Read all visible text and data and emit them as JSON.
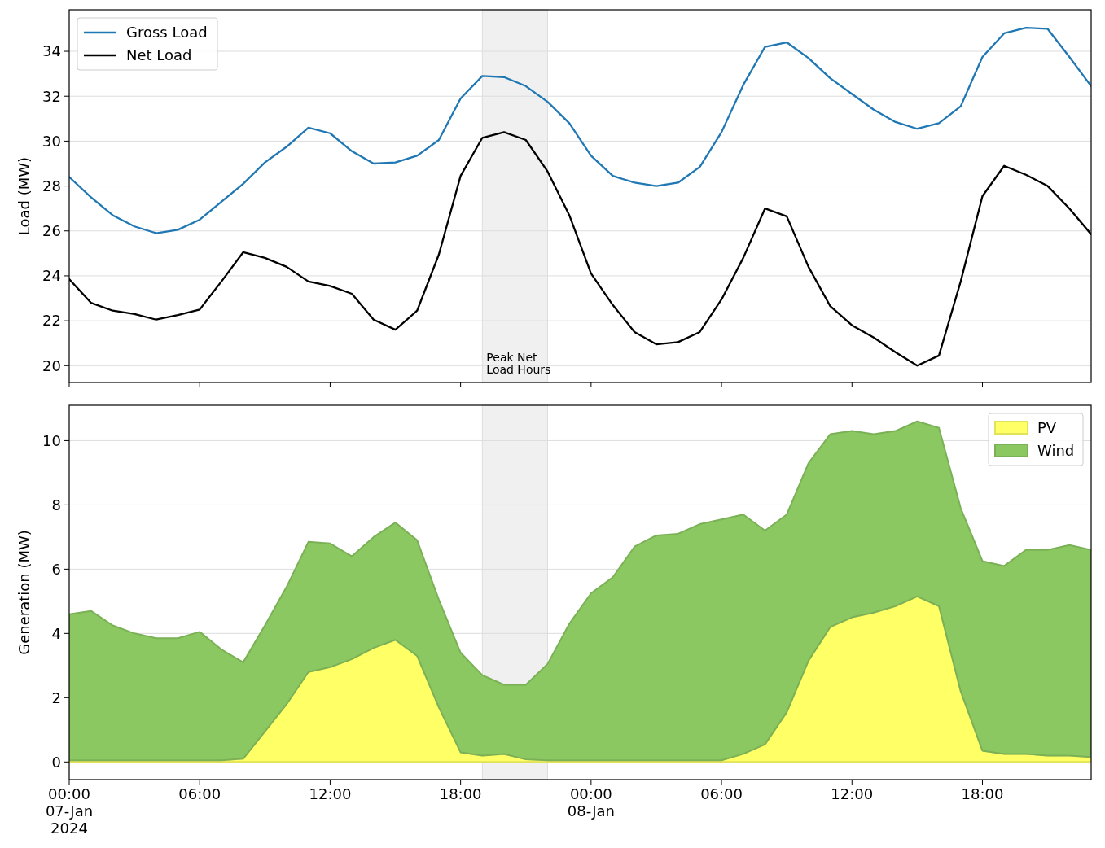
{
  "chart_data": [
    {
      "type": "line",
      "ylabel": "Load (MW)",
      "x": [
        "2024-01-07T00:00",
        "2024-01-07T01:00",
        "2024-01-07T02:00",
        "2024-01-07T03:00",
        "2024-01-07T04:00",
        "2024-01-07T05:00",
        "2024-01-07T06:00",
        "2024-01-07T07:00",
        "2024-01-07T08:00",
        "2024-01-07T09:00",
        "2024-01-07T10:00",
        "2024-01-07T11:00",
        "2024-01-07T12:00",
        "2024-01-07T13:00",
        "2024-01-07T14:00",
        "2024-01-07T15:00",
        "2024-01-07T16:00",
        "2024-01-07T17:00",
        "2024-01-07T18:00",
        "2024-01-07T19:00",
        "2024-01-07T20:00",
        "2024-01-07T21:00",
        "2024-01-07T22:00",
        "2024-01-07T23:00",
        "2024-01-08T00:00",
        "2024-01-08T01:00",
        "2024-01-08T02:00",
        "2024-01-08T03:00",
        "2024-01-08T04:00",
        "2024-01-08T05:00",
        "2024-01-08T06:00",
        "2024-01-08T07:00",
        "2024-01-08T08:00",
        "2024-01-08T09:00",
        "2024-01-08T10:00",
        "2024-01-08T11:00",
        "2024-01-08T12:00",
        "2024-01-08T13:00",
        "2024-01-08T14:00",
        "2024-01-08T15:00",
        "2024-01-08T16:00",
        "2024-01-08T17:00",
        "2024-01-08T18:00",
        "2024-01-08T19:00",
        "2024-01-08T20:00",
        "2024-01-08T21:00",
        "2024-01-08T22:00",
        "2024-01-08T23:00"
      ],
      "series": [
        {
          "name": "Gross Load",
          "color": "#1f77b4",
          "values": [
            28.4,
            27.5,
            26.7,
            26.2,
            25.9,
            26.05,
            26.5,
            27.3,
            28.1,
            29.05,
            29.75,
            30.6,
            30.35,
            29.55,
            29.0,
            29.05,
            29.35,
            30.05,
            31.9,
            32.9,
            32.85,
            32.45,
            31.75,
            30.8,
            29.35,
            28.45,
            28.15,
            28.0,
            28.15,
            28.85,
            30.4,
            32.5,
            34.2,
            34.4,
            33.7,
            32.8,
            32.1,
            31.4,
            30.85,
            30.55,
            30.8,
            31.55,
            33.75,
            34.8,
            35.05,
            35.0,
            33.75,
            32.45
          ]
        },
        {
          "name": "Net Load",
          "color": "#000000",
          "values": [
            23.85,
            22.8,
            22.45,
            22.3,
            22.05,
            22.25,
            22.5,
            23.75,
            25.05,
            24.8,
            24.4,
            23.75,
            23.55,
            23.2,
            22.05,
            21.6,
            22.45,
            24.95,
            28.45,
            30.15,
            30.4,
            30.05,
            28.65,
            26.7,
            24.1,
            22.7,
            21.5,
            20.95,
            21.05,
            21.5,
            22.95,
            24.8,
            27.0,
            26.65,
            24.4,
            22.65,
            21.8,
            21.25,
            20.6,
            20.0,
            20.45,
            23.75,
            27.55,
            28.9,
            28.5,
            28.0,
            27.0,
            25.85
          ]
        }
      ],
      "xlim": [
        "2024-01-07T00:00",
        "2024-01-08T23:00"
      ],
      "xticks": [
        {
          "value": "2024-01-07T00:00",
          "label": null
        },
        {
          "value": "2024-01-07T06:00",
          "label": null
        },
        {
          "value": "2024-01-07T12:00",
          "label": null
        },
        {
          "value": "2024-01-07T18:00",
          "label": null
        },
        {
          "value": "2024-01-08T00:00",
          "label": null
        },
        {
          "value": "2024-01-08T06:00",
          "label": null
        },
        {
          "value": "2024-01-08T12:00",
          "label": null
        },
        {
          "value": "2024-01-08T18:00",
          "label": null
        }
      ],
      "ylim": [
        19.25,
        35.85
      ],
      "yticks": [
        20,
        22,
        24,
        26,
        28,
        30,
        32,
        34
      ],
      "tick_labels": "y",
      "grid": "y",
      "legend": "top left",
      "line_style": "solid",
      "bands": [
        {
          "axis": "x",
          "from": "2024-01-07T19:00",
          "to": "2024-01-07T22:00",
          "label": "Peak Net\nLoad Hours",
          "color": "#f0f0f0"
        }
      ]
    },
    {
      "type": "area",
      "stacked": true,
      "ylabel": "Generation (MW)",
      "x": [
        "2024-01-07T00:00",
        "2024-01-07T01:00",
        "2024-01-07T02:00",
        "2024-01-07T03:00",
        "2024-01-07T04:00",
        "2024-01-07T05:00",
        "2024-01-07T06:00",
        "2024-01-07T07:00",
        "2024-01-07T08:00",
        "2024-01-07T09:00",
        "2024-01-07T10:00",
        "2024-01-07T11:00",
        "2024-01-07T12:00",
        "2024-01-07T13:00",
        "2024-01-07T14:00",
        "2024-01-07T15:00",
        "2024-01-07T16:00",
        "2024-01-07T17:00",
        "2024-01-07T18:00",
        "2024-01-07T19:00",
        "2024-01-07T20:00",
        "2024-01-07T21:00",
        "2024-01-07T22:00",
        "2024-01-07T23:00",
        "2024-01-08T00:00",
        "2024-01-08T01:00",
        "2024-01-08T02:00",
        "2024-01-08T03:00",
        "2024-01-08T04:00",
        "2024-01-08T05:00",
        "2024-01-08T06:00",
        "2024-01-08T07:00",
        "2024-01-08T08:00",
        "2024-01-08T09:00",
        "2024-01-08T10:00",
        "2024-01-08T11:00",
        "2024-01-08T12:00",
        "2024-01-08T13:00",
        "2024-01-08T14:00",
        "2024-01-08T15:00",
        "2024-01-08T16:00",
        "2024-01-08T17:00",
        "2024-01-08T18:00",
        "2024-01-08T19:00",
        "2024-01-08T20:00",
        "2024-01-08T21:00",
        "2024-01-08T22:00",
        "2024-01-08T23:00"
      ],
      "series": [
        {
          "name": "PV",
          "color": "#ffff66",
          "values": [
            0.05,
            0.05,
            0.05,
            0.05,
            0.05,
            0.05,
            0.05,
            0.05,
            0.1,
            0.95,
            1.8,
            2.8,
            2.95,
            3.2,
            3.55,
            3.8,
            3.3,
            1.7,
            0.3,
            0.2,
            0.25,
            0.08,
            0.05,
            0.05,
            0.05,
            0.05,
            0.05,
            0.05,
            0.05,
            0.05,
            0.05,
            0.25,
            0.55,
            1.55,
            3.15,
            4.2,
            4.5,
            4.65,
            4.85,
            5.15,
            4.85,
            2.2,
            0.35,
            0.25,
            0.25,
            0.2,
            0.2,
            0.15
          ]
        },
        {
          "name": "Wind",
          "color": "#8bc862",
          "values": [
            4.55,
            4.65,
            4.2,
            3.95,
            3.8,
            3.8,
            4.0,
            3.45,
            3.0,
            3.3,
            3.65,
            4.05,
            3.85,
            3.2,
            3.45,
            3.65,
            3.6,
            3.35,
            3.1,
            2.5,
            2.15,
            2.32,
            3.0,
            4.25,
            5.2,
            5.7,
            6.65,
            7.0,
            7.05,
            7.35,
            7.5,
            7.45,
            6.65,
            6.15,
            6.15,
            6.0,
            5.8,
            5.55,
            5.45,
            5.45,
            5.55,
            5.7,
            5.9,
            5.85,
            6.35,
            6.4,
            6.55,
            6.45
          ]
        }
      ],
      "xlim": [
        "2024-01-07T00:00",
        "2024-01-08T23:00"
      ],
      "xticks": [
        {
          "value": "2024-01-07T00:00",
          "label": "00:00\n07-Jan\n2024"
        },
        {
          "value": "2024-01-07T06:00",
          "label": "06:00"
        },
        {
          "value": "2024-01-07T12:00",
          "label": "12:00"
        },
        {
          "value": "2024-01-07T18:00",
          "label": "18:00"
        },
        {
          "value": "2024-01-08T00:00",
          "label": "00:00\n08-Jan"
        },
        {
          "value": "2024-01-08T06:00",
          "label": "06:00"
        },
        {
          "value": "2024-01-08T12:00",
          "label": "12:00"
        },
        {
          "value": "2024-01-08T18:00",
          "label": "18:00"
        }
      ],
      "ylim": [
        -0.55,
        11.1
      ],
      "yticks": [
        0,
        2,
        4,
        6,
        8,
        10
      ],
      "grid": "y",
      "legend": "top right",
      "bands": [
        {
          "axis": "x",
          "from": "2024-01-07T19:00",
          "to": "2024-01-07T22:00",
          "color": "#f0f0f0"
        }
      ]
    }
  ]
}
